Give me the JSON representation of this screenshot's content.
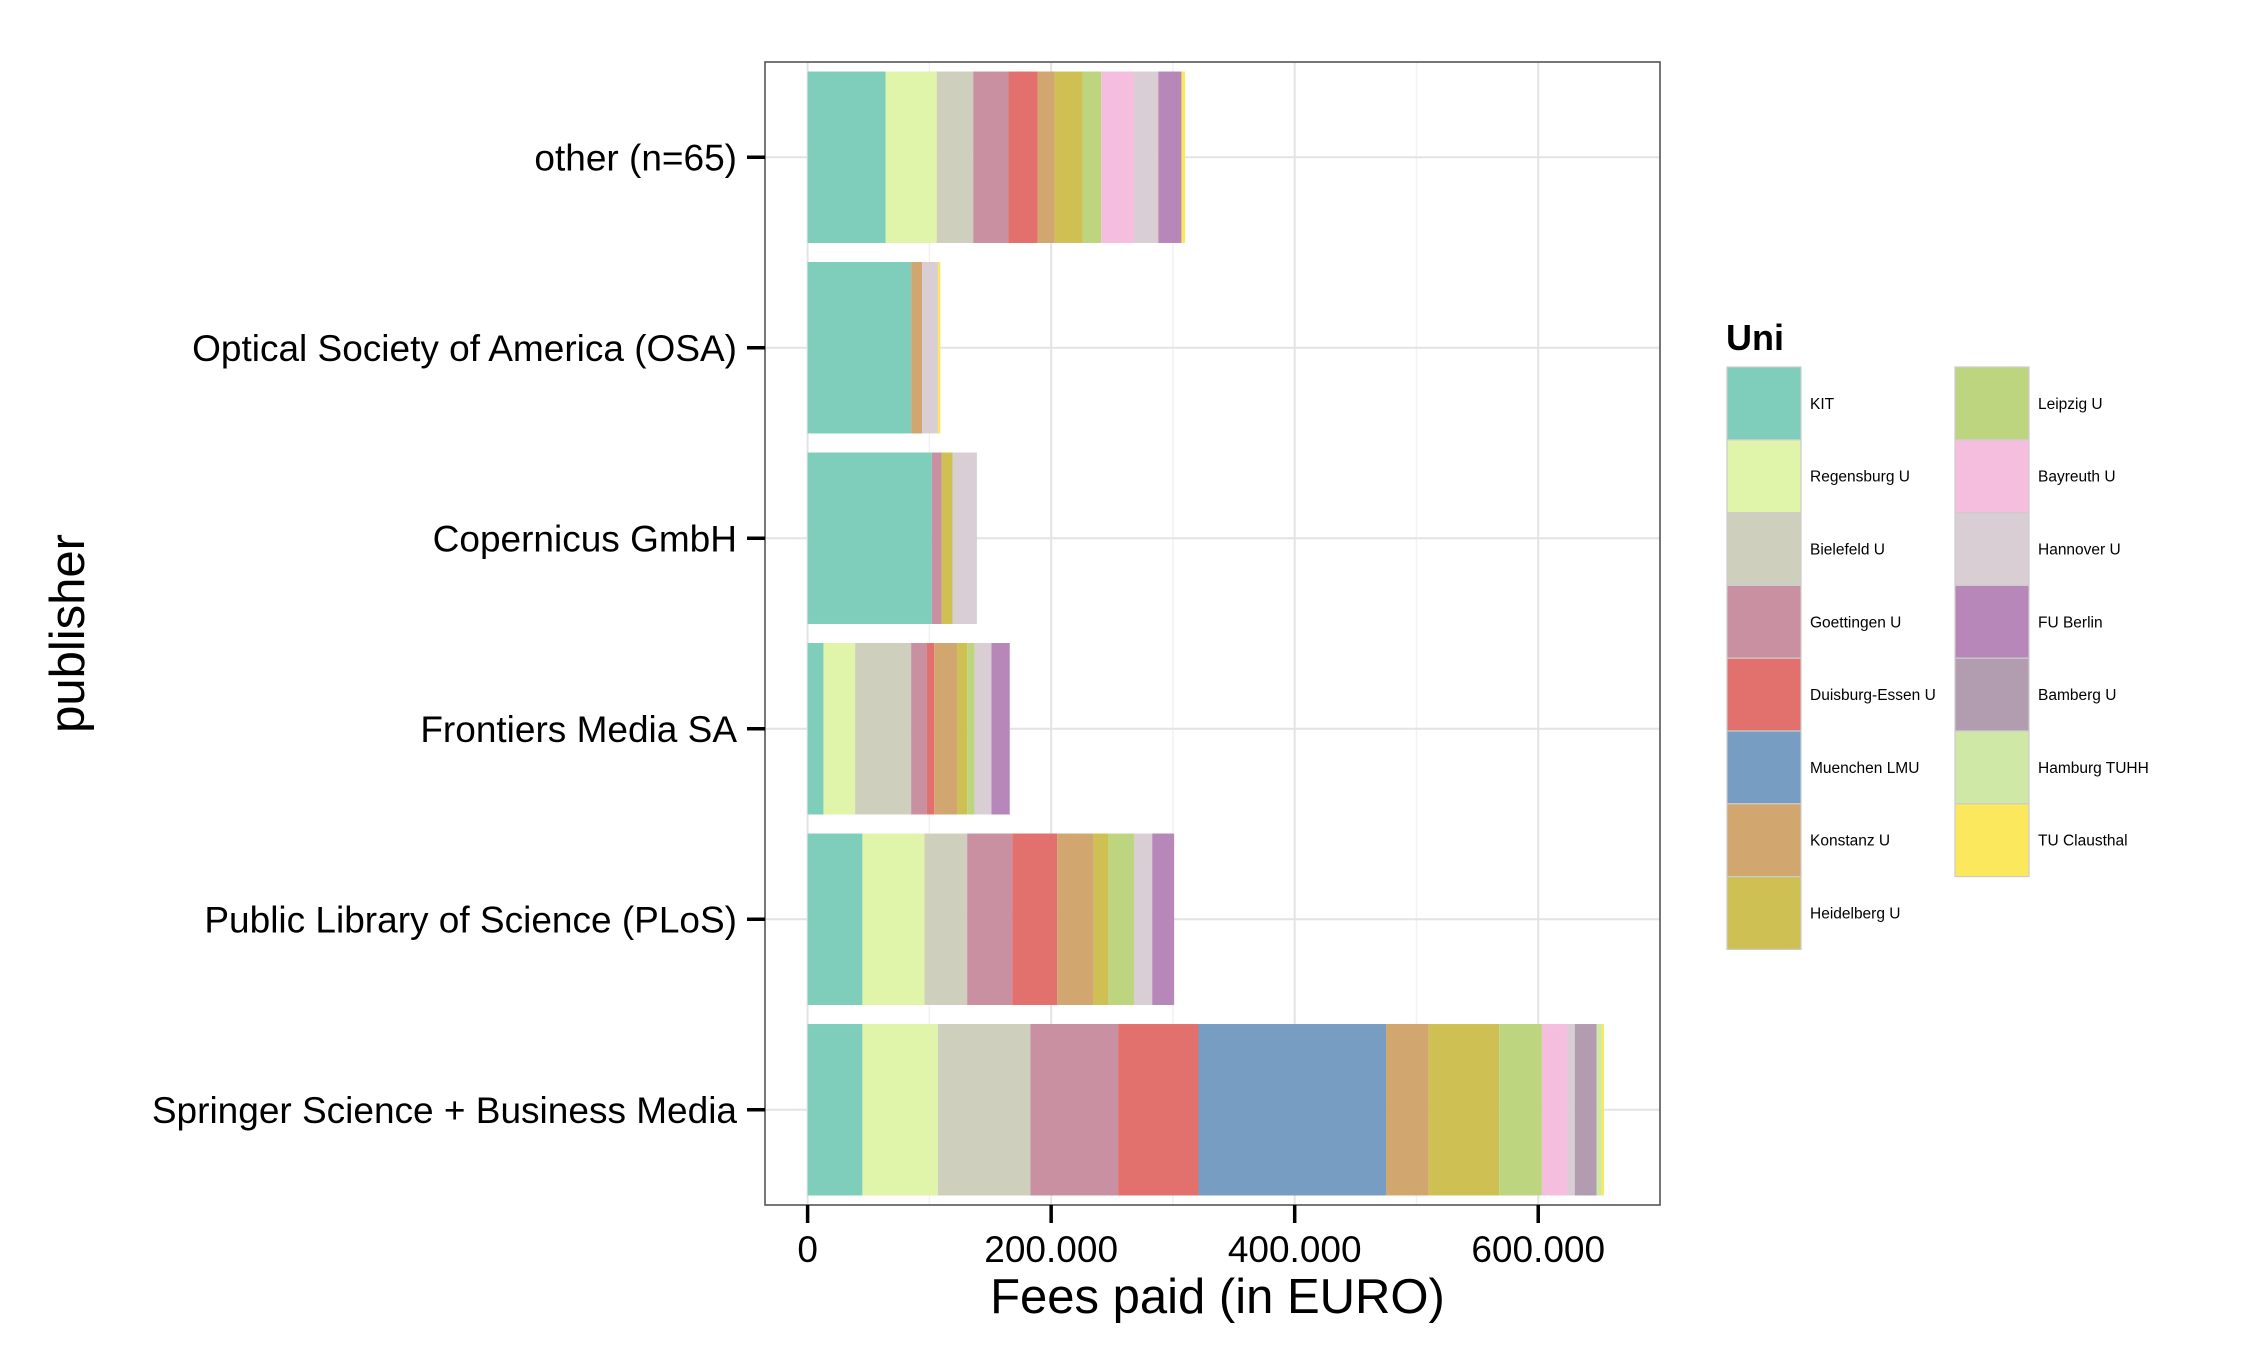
{
  "chart_data": {
    "type": "bar",
    "orientation": "horizontal",
    "stacked": true,
    "xlabel": "Fees paid (in EURO)",
    "ylabel": "publisher",
    "xlim": [
      -35000,
      700000
    ],
    "xticks": [
      0,
      200000,
      400000,
      600000
    ],
    "xtick_labels": [
      "0",
      "200.000",
      "400.000",
      "600.000"
    ],
    "grid": true,
    "legend": {
      "title": "Uni",
      "position": "right",
      "columns": 2
    },
    "categories": [
      "other (n=65)",
      "Optical Society of America (OSA)",
      "Copernicus GmbH",
      "Frontiers Media SA",
      "Public Library of Science (PLoS)",
      "Springer Science + Business Media"
    ],
    "series": [
      {
        "name": "KIT",
        "color": "#7FCDBB",
        "values": [
          64000,
          85000,
          102000,
          13000,
          45000,
          45000
        ]
      },
      {
        "name": "Regensburg U",
        "color": "#E0F5A9",
        "values": [
          42000,
          0,
          0,
          26000,
          51000,
          62000
        ]
      },
      {
        "name": "Bielefeld U",
        "color": "#CFCFBE",
        "values": [
          30000,
          0,
          0,
          46000,
          35000,
          76000
        ]
      },
      {
        "name": "Goettingen U",
        "color": "#C890A0",
        "values": [
          29000,
          0,
          8000,
          13000,
          37000,
          72000
        ]
      },
      {
        "name": "Duisburg-Essen U",
        "color": "#E2706C",
        "values": [
          24000,
          0,
          0,
          6000,
          37000,
          66000
        ]
      },
      {
        "name": "Muenchen LMU",
        "color": "#789DC2",
        "values": [
          0,
          0,
          0,
          0,
          0,
          154000
        ]
      },
      {
        "name": "Konstanz U",
        "color": "#D1A66F",
        "values": [
          14000,
          9000,
          0,
          19000,
          30000,
          35000
        ]
      },
      {
        "name": "Heidelberg U",
        "color": "#CEC053",
        "values": [
          23000,
          0,
          9000,
          8000,
          12000,
          58000
        ]
      },
      {
        "name": "Leipzig U",
        "color": "#BDD57E",
        "values": [
          15000,
          0,
          0,
          6000,
          21000,
          35000
        ]
      },
      {
        "name": "Bayreuth U",
        "color": "#F5BEDE",
        "values": [
          27000,
          0,
          0,
          0,
          0,
          21000
        ]
      },
      {
        "name": "Hannover U",
        "color": "#D8CED4",
        "values": [
          20000,
          13000,
          20000,
          14000,
          15000,
          6000
        ]
      },
      {
        "name": "FU Berlin",
        "color": "#B787B9",
        "values": [
          19000,
          0,
          0,
          15000,
          18000,
          0
        ]
      },
      {
        "name": "Bamberg U",
        "color": "#B29CB0",
        "values": [
          0,
          0,
          0,
          0,
          0,
          18000
        ]
      },
      {
        "name": "Hamburg TUHH",
        "color": "#CFE8A6",
        "values": [
          0,
          0,
          0,
          0,
          0,
          4000
        ]
      },
      {
        "name": "TU Clausthal",
        "color": "#FCE85D",
        "values": [
          3000,
          2000,
          0,
          0,
          0,
          2000
        ]
      }
    ]
  }
}
